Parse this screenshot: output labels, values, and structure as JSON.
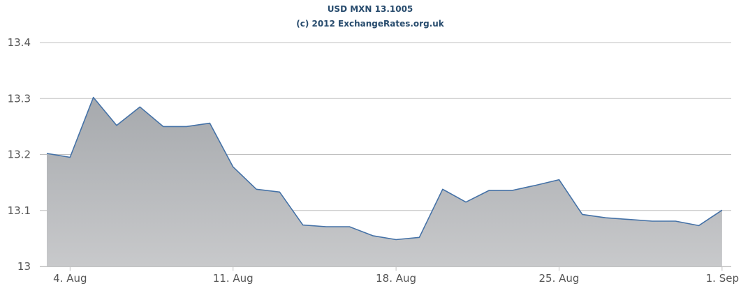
{
  "chart_data": {
    "type": "area",
    "title": "USD MXN 13.1005",
    "subtitle": "(c) 2012 ExchangeRates.org.uk",
    "xlabel": "",
    "ylabel": "",
    "ylim": [
      13,
      13.4
    ],
    "yticks": [
      "13",
      "13.1",
      "13.2",
      "13.3",
      "13.4"
    ],
    "xticks": [
      {
        "label": "4. Aug",
        "date": "2012-08-04"
      },
      {
        "label": "11. Aug",
        "date": "2012-08-11"
      },
      {
        "label": "18. Aug",
        "date": "2012-08-18"
      },
      {
        "label": "25. Aug",
        "date": "2012-08-25"
      },
      {
        "label": "1. Sep",
        "date": "2012-09-01"
      }
    ],
    "grid": true,
    "legend": "none",
    "colors": {
      "line": "#4572a7",
      "fill_top": "#a6a9ad",
      "fill_bottom": "#c8c9cb",
      "grid": "#c0c0c0",
      "title": "#274b6d"
    },
    "series": [
      {
        "points": [
          {
            "x": "2012-08-03",
            "y": 13.202
          },
          {
            "x": "2012-08-04",
            "y": 13.195
          },
          {
            "x": "2012-08-05",
            "y": 13.302
          },
          {
            "x": "2012-08-06",
            "y": 13.252
          },
          {
            "x": "2012-08-07",
            "y": 13.285
          },
          {
            "x": "2012-08-08",
            "y": 13.25
          },
          {
            "x": "2012-08-09",
            "y": 13.25
          },
          {
            "x": "2012-08-10",
            "y": 13.256
          },
          {
            "x": "2012-08-11",
            "y": 13.178
          },
          {
            "x": "2012-08-12",
            "y": 13.138
          },
          {
            "x": "2012-08-13",
            "y": 13.133
          },
          {
            "x": "2012-08-14",
            "y": 13.074
          },
          {
            "x": "2012-08-15",
            "y": 13.071
          },
          {
            "x": "2012-08-16",
            "y": 13.071
          },
          {
            "x": "2012-08-17",
            "y": 13.055
          },
          {
            "x": "2012-08-18",
            "y": 13.048
          },
          {
            "x": "2012-08-19",
            "y": 13.052
          },
          {
            "x": "2012-08-20",
            "y": 13.138
          },
          {
            "x": "2012-08-21",
            "y": 13.115
          },
          {
            "x": "2012-08-22",
            "y": 13.136
          },
          {
            "x": "2012-08-23",
            "y": 13.136
          },
          {
            "x": "2012-08-24",
            "y": 13.145
          },
          {
            "x": "2012-08-25",
            "y": 13.155
          },
          {
            "x": "2012-08-26",
            "y": 13.093
          },
          {
            "x": "2012-08-27",
            "y": 13.087
          },
          {
            "x": "2012-08-28",
            "y": 13.084
          },
          {
            "x": "2012-08-29",
            "y": 13.081
          },
          {
            "x": "2012-08-30",
            "y": 13.081
          },
          {
            "x": "2012-08-31",
            "y": 13.073
          },
          {
            "x": "2012-09-01",
            "y": 13.1005
          }
        ]
      }
    ]
  }
}
